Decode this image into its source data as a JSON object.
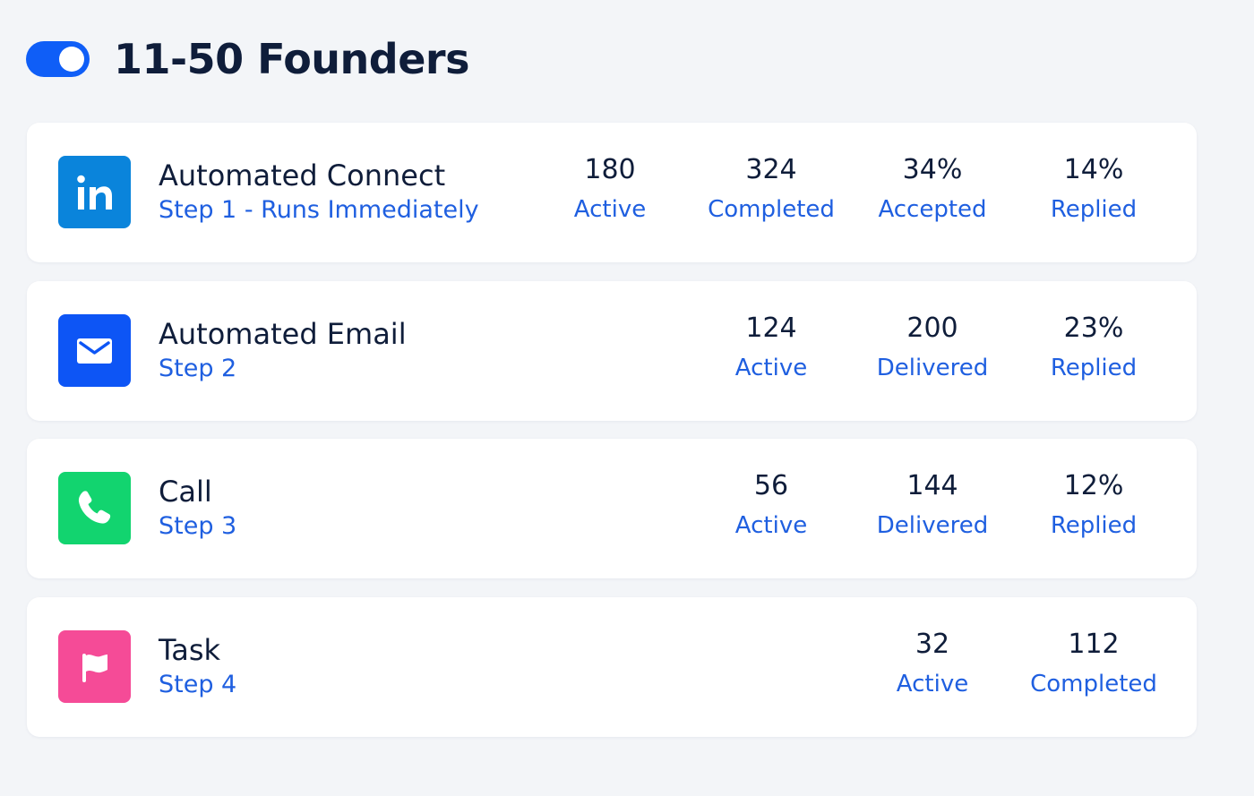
{
  "header": {
    "title": "11-50 Founders"
  },
  "steps": [
    {
      "title": "Automated Connect",
      "subtitle": "Step 1 - Runs Immediately",
      "stats": [
        {
          "value": "180",
          "label": "Active"
        },
        {
          "value": "324",
          "label": "Completed"
        },
        {
          "value": "34%",
          "label": "Accepted"
        },
        {
          "value": "14%",
          "label": "Replied"
        }
      ]
    },
    {
      "title": "Automated Email",
      "subtitle": "Step 2",
      "stats": [
        {
          "value": "124",
          "label": "Active"
        },
        {
          "value": "200",
          "label": "Delivered"
        },
        {
          "value": "23%",
          "label": "Replied"
        }
      ]
    },
    {
      "title": "Call",
      "subtitle": "Step 3",
      "stats": [
        {
          "value": "56",
          "label": "Active"
        },
        {
          "value": "144",
          "label": "Delivered"
        },
        {
          "value": "12%",
          "label": "Replied"
        }
      ]
    },
    {
      "title": "Task",
      "subtitle": "Step 4",
      "stats": [
        {
          "value": "32",
          "label": "Active"
        },
        {
          "value": "112",
          "label": "Completed"
        }
      ]
    }
  ]
}
